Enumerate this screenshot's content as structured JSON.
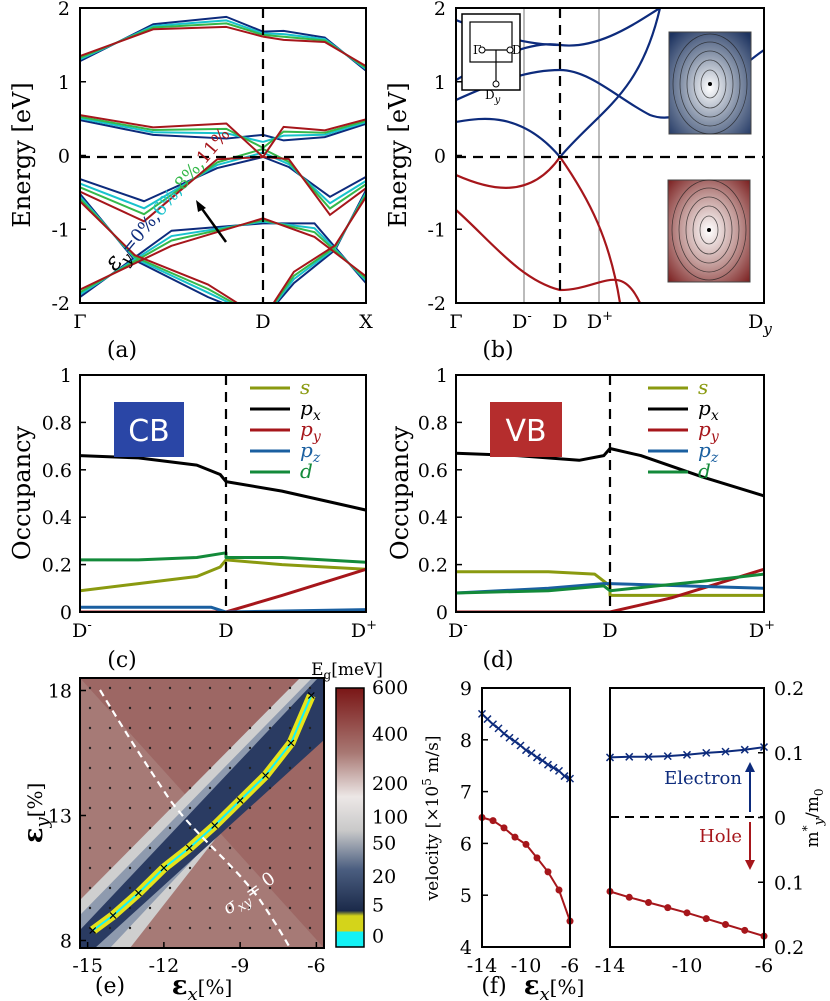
{
  "colors": {
    "blue": "#0d2b7c",
    "cyan": "#18c2cc",
    "green": "#35b84a",
    "red": "#a6161b",
    "olive": "#8a9a10",
    "dkgreen": "#138a3a",
    "pzblue": "#1a5fa0",
    "cbbox": "#2a46a6",
    "vbbox": "#b52d2d"
  },
  "panel_labels": [
    "(a)",
    "(b)",
    "(c)",
    "(d)",
    "(e)",
    "(f)"
  ],
  "chart_data": [
    {
      "id": "a",
      "type": "line",
      "ylabel": "Energy [eV]",
      "ylim": [
        -2,
        2
      ],
      "yticks": [
        "2",
        "1",
        "0",
        "-1",
        "-2"
      ],
      "xticks": [
        "Γ",
        "D",
        "X"
      ],
      "strain_label": {
        "prefix": "ε",
        "sub": "y",
        "values": [
          "=0%,",
          "6%,",
          "8%,",
          "11%"
        ]
      },
      "series": [
        {
          "value": "0%",
          "color": "blue"
        },
        {
          "value": "6%",
          "color": "cyan"
        },
        {
          "value": "8%",
          "color": "green"
        },
        {
          "value": "11%",
          "color": "red"
        }
      ]
    },
    {
      "id": "b",
      "type": "line",
      "ylabel": "Energy [eV]",
      "ylim": [
        -2,
        2
      ],
      "yticks": [
        "2",
        "1",
        "0",
        "-1",
        "-2"
      ],
      "xticks": {
        "gamma": "Γ",
        "dminus": "D",
        "dminus_sup": "-",
        "d": "D",
        "dplus": "D",
        "dplus_sup": "+",
        "dy": "D",
        "dy_sub": "y"
      },
      "inset_labels": {
        "gamma": "Γ",
        "d": "D",
        "dy": "D",
        "dy_sub": "y"
      }
    },
    {
      "id": "c",
      "type": "line",
      "ylabel": "Occupancy",
      "ylim": [
        0,
        1
      ],
      "yticks": [
        "1",
        "0.8",
        "0.6",
        "0.4",
        "0.2",
        "0"
      ],
      "box": "CB",
      "xticks": {
        "dminus": "D",
        "dminus_sup": "-",
        "d": "D",
        "dplus": "D",
        "dplus_sup": "+"
      },
      "legend": [
        {
          "name": "s",
          "color": "olive"
        },
        {
          "name": "p",
          "sub": "x",
          "color": "black"
        },
        {
          "name": "p",
          "sub": "y",
          "color": "red"
        },
        {
          "name": "p",
          "sub": "z",
          "color": "pzblue"
        },
        {
          "name": "d",
          "color": "dkgreen"
        }
      ],
      "series": [
        {
          "name": "s",
          "x": [
            0,
            0.2,
            0.4,
            0.48,
            0.5,
            0.5,
            0.7,
            1
          ],
          "y": [
            0.09,
            0.12,
            0.15,
            0.19,
            0.22,
            0.22,
            0.2,
            0.18
          ]
        },
        {
          "name": "px",
          "x": [
            0,
            0.2,
            0.4,
            0.48,
            0.5,
            0.5,
            0.7,
            1
          ],
          "y": [
            0.66,
            0.65,
            0.62,
            0.58,
            0.55,
            0.55,
            0.51,
            0.43
          ]
        },
        {
          "name": "py",
          "x": [
            0,
            0.5,
            0.5,
            0.7,
            1
          ],
          "y": [
            0.0,
            0.0,
            0.0,
            0.07,
            0.18
          ]
        },
        {
          "name": "pz",
          "x": [
            0,
            0.3,
            0.45,
            0.5,
            0.5,
            1
          ],
          "y": [
            0.02,
            0.02,
            0.02,
            0.0,
            0.0,
            0.01
          ]
        },
        {
          "name": "d",
          "x": [
            0,
            0.2,
            0.4,
            0.5,
            0.5,
            0.7,
            1
          ],
          "y": [
            0.22,
            0.22,
            0.23,
            0.25,
            0.23,
            0.23,
            0.21
          ]
        }
      ]
    },
    {
      "id": "d",
      "type": "line",
      "ylabel": "Occupancy",
      "ylim": [
        0,
        1
      ],
      "yticks": [
        "1",
        "0.8",
        "0.6",
        "0.4",
        "0.2",
        "0"
      ],
      "box": "VB",
      "xticks": {
        "dminus": "D",
        "dminus_sup": "-",
        "d": "D",
        "dplus": "D",
        "dplus_sup": "+"
      },
      "legend": [
        {
          "name": "s",
          "color": "olive"
        },
        {
          "name": "p",
          "sub": "x",
          "color": "black"
        },
        {
          "name": "p",
          "sub": "y",
          "color": "red"
        },
        {
          "name": "p",
          "sub": "z",
          "color": "pzblue"
        },
        {
          "name": "d",
          "color": "dkgreen"
        }
      ],
      "series": [
        {
          "name": "s",
          "x": [
            0,
            0.3,
            0.45,
            0.5,
            0.5,
            1
          ],
          "y": [
            0.17,
            0.17,
            0.16,
            0.11,
            0.07,
            0.07
          ]
        },
        {
          "name": "px",
          "x": [
            0,
            0.2,
            0.4,
            0.48,
            0.5,
            0.6,
            0.8,
            1
          ],
          "y": [
            0.67,
            0.66,
            0.64,
            0.66,
            0.69,
            0.66,
            0.57,
            0.49
          ]
        },
        {
          "name": "py",
          "x": [
            0,
            0.5,
            0.5,
            0.7,
            0.85,
            1
          ],
          "y": [
            0.0,
            0.0,
            0.0,
            0.06,
            0.12,
            0.18
          ]
        },
        {
          "name": "pz",
          "x": [
            0,
            0.3,
            0.48,
            0.5,
            0.5,
            1
          ],
          "y": [
            0.08,
            0.1,
            0.12,
            0.12,
            0.12,
            0.1
          ]
        },
        {
          "name": "d",
          "x": [
            0,
            0.3,
            0.48,
            0.5,
            0.5,
            0.8,
            1
          ],
          "y": [
            0.08,
            0.09,
            0.11,
            0.09,
            0.09,
            0.13,
            0.16
          ]
        }
      ]
    },
    {
      "id": "e",
      "type": "heatmap",
      "xlabel": "ε",
      "xlabel_sub": "x",
      "xlabel_unit": "[%]",
      "ylabel": "ε",
      "ylabel_sub": "y",
      "ylabel_unit": "[%]",
      "xticks": [
        "-15",
        "-12",
        "-9",
        "-6"
      ],
      "yticks": [
        "18",
        "13",
        "8"
      ],
      "colorbar": {
        "title": "E",
        "title_sub": "g",
        "title_unit": "[meV]",
        "labels": [
          "600",
          "400",
          "200",
          "100",
          "50",
          "20",
          "5",
          "0"
        ]
      },
      "annotation": "σ",
      "annotation_sub": "xy",
      "annotation_val": "= 0",
      "ridge": {
        "x": [
          -14.8,
          -14,
          -13,
          -12,
          -11,
          -10,
          -9,
          -8,
          -7,
          -6.2
        ],
        "y": [
          8.4,
          9.0,
          9.9,
          10.9,
          11.7,
          12.6,
          13.6,
          14.6,
          15.9,
          17.8
        ]
      }
    },
    {
      "id": "f",
      "type": "line",
      "xlabel": "ε",
      "xlabel_sub": "x",
      "xlabel_unit": "[%]",
      "left": {
        "ylabel": "velocity [×10",
        "ylabel_exp": "5",
        "ylabel_unit": " m/s]",
        "ylim": [
          4,
          9
        ],
        "yticks": [
          "9",
          "8",
          "7",
          "6",
          "5",
          "4"
        ],
        "xticks": [
          "-14",
          "-10",
          "-6"
        ],
        "series": [
          {
            "name": "Electron",
            "color": "blue",
            "marker": "x",
            "x": [
              -14,
              -13.5,
              -13,
              -12.5,
              -12,
              -11.5,
              -11,
              -10.5,
              -10,
              -9.5,
              -9,
              -8.5,
              -8,
              -7.5,
              -7,
              -6.5,
              -6
            ],
            "y": [
              8.5,
              8.4,
              8.3,
              8.22,
              8.12,
              8.04,
              7.97,
              7.89,
              7.8,
              7.74,
              7.66,
              7.6,
              7.52,
              7.46,
              7.4,
              7.3,
              7.25
            ]
          },
          {
            "name": "Hole",
            "color": "red",
            "marker": "dot",
            "x": [
              -14,
              -13,
              -12,
              -11,
              -10,
              -9,
              -8,
              -7,
              -6
            ],
            "y": [
              6.5,
              6.44,
              6.3,
              6.12,
              5.98,
              5.72,
              5.45,
              5.1,
              4.5
            ]
          }
        ]
      },
      "right": {
        "ylabel": "m",
        "ylabel_sup": "*",
        "ylabel_sub": "y",
        "ylabel_unit": "/m",
        "ylabel_unit_sub": "0",
        "yticks": [
          "0.2",
          "0.1",
          "0",
          "0.1",
          "0.2"
        ],
        "xticks": [
          "-14",
          "-10",
          "-6"
        ],
        "legend": {
          "electron": "Electron",
          "hole": "Hole"
        },
        "series": [
          {
            "name": "Electron",
            "color": "blue",
            "marker": "x",
            "x": [
              -14,
              -13,
              -12,
              -11,
              -10,
              -9,
              -8,
              -7,
              -6
            ],
            "y": [
              0.092,
              0.093,
              0.093,
              0.094,
              0.096,
              0.099,
              0.101,
              0.104,
              0.108
            ]
          },
          {
            "name": "Hole",
            "color": "red",
            "marker": "dot",
            "x": [
              -14,
              -13,
              -12,
              -11,
              -10,
              -9,
              -8,
              -7,
              -6
            ],
            "y": [
              -0.115,
              -0.124,
              -0.132,
              -0.14,
              -0.148,
              -0.157,
              -0.166,
              -0.175,
              -0.184
            ]
          }
        ]
      }
    }
  ]
}
